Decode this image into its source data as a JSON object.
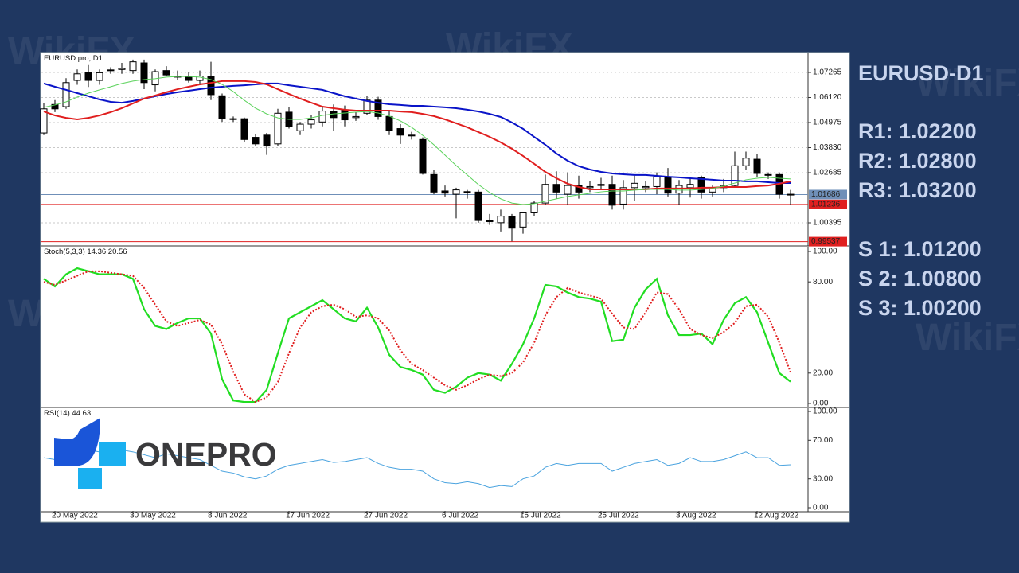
{
  "chart_data": [
    {
      "type": "candlestick",
      "title": "EURUSD.pro, D1",
      "categories": [
        null,
        "20 May 2022",
        null,
        null,
        null,
        null,
        null,
        null,
        "30 May 2022",
        null,
        null,
        null,
        null,
        null,
        null,
        "8 Jun 2022",
        null,
        null,
        null,
        null,
        null,
        null,
        "17 Jun 2022",
        null,
        null,
        null,
        null,
        null,
        null,
        "27 Jun 2022",
        null,
        null,
        null,
        null,
        null,
        null,
        "6 Jul 2022",
        null,
        null,
        null,
        null,
        null,
        null,
        "15 Jul 2022",
        null,
        null,
        null,
        null,
        null,
        null,
        "25 Jul 2022",
        null,
        null,
        null,
        null,
        null,
        null,
        "3 Aug 2022",
        null,
        null,
        null,
        null,
        null,
        null,
        "12 Aug 2022",
        null,
        null,
        null
      ],
      "open": [
        1.045,
        1.058,
        1.057,
        1.069,
        1.0725,
        1.069,
        1.0735,
        1.074,
        1.0735,
        1.077,
        1.067,
        1.0735,
        1.0705,
        1.071,
        1.069,
        1.071,
        1.062,
        1.0515,
        1.0515,
        1.043,
        1.044,
        1.04,
        1.0545,
        1.046,
        1.049,
        1.05,
        1.055,
        1.0555,
        1.052,
        1.054,
        1.06,
        1.0525,
        1.047,
        1.044,
        1.042,
        1.026,
        1.0185,
        1.017,
        1.018,
        1.018,
        1.005,
        1.004,
        1.007,
        1.002,
        1.0085,
        1.013,
        1.0215,
        1.017,
        1.021,
        1.02,
        1.0215,
        1.0215,
        1.0125,
        1.02,
        1.02,
        1.0205,
        1.025,
        1.0175,
        1.02,
        1.0245,
        1.018,
        1.02,
        1.021,
        1.03,
        1.033,
        1.026,
        1.026,
        1.017
      ],
      "high": [
        1.0585,
        1.06,
        1.07,
        1.074,
        1.076,
        1.074,
        1.075,
        1.077,
        1.0785,
        1.0785,
        1.074,
        1.0755,
        1.0735,
        1.073,
        1.0735,
        1.0775,
        1.063,
        1.0525,
        1.052,
        1.0445,
        1.045,
        1.056,
        1.057,
        1.05,
        1.053,
        1.057,
        1.058,
        1.0575,
        1.0545,
        1.062,
        1.0615,
        1.055,
        1.049,
        1.0455,
        1.043,
        1.028,
        1.021,
        1.02,
        1.019,
        1.019,
        1.008,
        1.01,
        1.008,
        1.009,
        1.014,
        1.026,
        1.0275,
        1.027,
        1.0255,
        1.023,
        1.0245,
        1.0255,
        1.0235,
        1.0255,
        1.023,
        1.027,
        1.029,
        1.0235,
        1.024,
        1.0255,
        1.021,
        1.024,
        1.0365,
        1.0365,
        1.0355,
        1.027,
        1.027,
        1.019
      ],
      "low": [
        1.044,
        1.0545,
        1.056,
        1.067,
        1.066,
        1.067,
        1.072,
        1.072,
        1.072,
        1.065,
        1.064,
        1.071,
        1.069,
        1.068,
        1.067,
        1.06,
        1.05,
        1.05,
        1.041,
        1.039,
        1.035,
        1.039,
        1.047,
        1.044,
        1.047,
        1.048,
        1.046,
        1.048,
        1.0505,
        1.053,
        1.051,
        1.044,
        1.04,
        1.042,
        1.026,
        1.017,
        1.016,
        1.006,
        1.015,
        1.004,
        1.003,
        1.0,
        0.9955,
        0.999,
        1.007,
        1.012,
        1.015,
        1.012,
        1.015,
        1.018,
        1.019,
        1.01,
        1.01,
        1.014,
        1.018,
        1.017,
        1.016,
        1.012,
        1.0155,
        1.015,
        1.016,
        1.018,
        1.02,
        1.028,
        1.025,
        1.024,
        1.015,
        1.012
      ],
      "close": [
        1.056,
        1.056,
        1.068,
        1.072,
        1.069,
        1.0725,
        1.0738,
        1.0745,
        1.0775,
        1.068,
        1.073,
        1.0715,
        1.071,
        1.069,
        1.071,
        1.0625,
        1.0515,
        1.0515,
        1.042,
        1.04,
        1.039,
        1.054,
        1.048,
        1.049,
        1.051,
        1.055,
        1.052,
        1.051,
        1.0525,
        1.06,
        1.0525,
        1.046,
        1.044,
        1.044,
        1.0265,
        1.018,
        1.0175,
        1.019,
        1.0182,
        1.005,
        1.0045,
        1.007,
        1.0015,
        1.0085,
        1.013,
        1.0215,
        1.018,
        1.021,
        1.018,
        1.0205,
        1.021,
        1.012,
        1.02,
        1.022,
        1.0205,
        1.025,
        1.0175,
        1.021,
        1.0215,
        1.018,
        1.02,
        1.021,
        1.03,
        1.0335,
        1.0265,
        1.0258,
        1.017,
        1.0168
      ],
      "series": [
        {
          "color": "#0a14c8",
          "values": [
            1.0676,
            1.0661,
            1.0647,
            1.0632,
            1.0618,
            1.0603,
            1.0592,
            1.0588,
            1.0596,
            1.0607,
            1.0618,
            1.0628,
            1.0636,
            1.0643,
            1.065,
            1.0657,
            1.0661,
            1.0665,
            1.0668,
            1.0672,
            1.0676,
            1.0676,
            1.0668,
            1.0661,
            1.0654,
            1.0647,
            1.0632,
            1.0618,
            1.0607,
            1.0596,
            1.0588,
            1.0581,
            1.0578,
            1.0574,
            1.0574,
            1.057,
            1.0567,
            1.0563,
            1.0556,
            1.0548,
            1.0537,
            1.0523,
            1.0498,
            1.0469,
            1.0432,
            1.0396,
            1.0356,
            1.0323,
            1.0298,
            1.0283,
            1.0272,
            1.0265,
            1.0261,
            1.0258,
            1.0258,
            1.0254,
            1.025,
            1.0247,
            1.0243,
            1.024,
            1.0236,
            1.0232,
            1.0232,
            1.0229,
            1.0229,
            1.0225,
            1.0221,
            1.0221
          ]
        },
        {
          "color": "#e01e1e",
          "values": [
            1.0548,
            1.053,
            1.0519,
            1.0512,
            1.0519,
            1.053,
            1.0545,
            1.0563,
            1.0585,
            1.0607,
            1.0621,
            1.0636,
            1.065,
            1.0661,
            1.0672,
            1.0679,
            1.0687,
            1.0687,
            1.0687,
            1.0683,
            1.0672,
            1.065,
            1.0628,
            1.0607,
            1.0588,
            1.057,
            1.0563,
            1.0556,
            1.0552,
            1.0552,
            1.0552,
            1.0552,
            1.0548,
            1.0545,
            1.0537,
            1.0527,
            1.0512,
            1.0494,
            1.0476,
            1.0454,
            1.0432,
            1.0407,
            1.0378,
            1.0345,
            1.0309,
            1.0272,
            1.0243,
            1.0218,
            1.0203,
            1.0192,
            1.0192,
            1.0192,
            1.0192,
            1.0192,
            1.0192,
            1.0196,
            1.0196,
            1.0196,
            1.0196,
            1.02,
            1.02,
            1.0203,
            1.0203,
            1.0203,
            1.0207,
            1.021,
            1.0218,
            1.0229
          ]
        },
        {
          "color": "#5ad25a",
          "values": [
            1.0567,
            1.0578,
            1.0592,
            1.0614,
            1.0632,
            1.0647,
            1.0661,
            1.0676,
            1.0687,
            1.0694,
            1.0698,
            1.0705,
            1.0708,
            1.0708,
            1.0705,
            1.0694,
            1.0672,
            1.0639,
            1.0599,
            1.0563,
            1.0537,
            1.0519,
            1.0512,
            1.0512,
            1.0519,
            1.053,
            1.0537,
            1.0541,
            1.0545,
            1.0548,
            1.0541,
            1.0527,
            1.0505,
            1.0476,
            1.0439,
            1.0396,
            1.0349,
            1.0301,
            1.0258,
            1.0214,
            1.0178,
            1.0149,
            1.013,
            1.0123,
            1.0127,
            1.0138,
            1.0149,
            1.016,
            1.0167,
            1.0174,
            1.0181,
            1.0185,
            1.0185,
            1.0189,
            1.0192,
            1.0192,
            1.0192,
            1.0189,
            1.0189,
            1.0192,
            1.0196,
            1.0207,
            1.0221,
            1.0236,
            1.0243,
            1.0247,
            1.0243,
            1.024
          ]
        }
      ],
      "hlines": [
        {
          "value": 1.01686,
          "color": "#6f8fb8"
        },
        {
          "value": 1.01236,
          "color": "#e02020"
        },
        {
          "value": 0.99537,
          "color": "#e02020"
        }
      ],
      "ylim": [
        0.99413,
        1.08101
      ],
      "yticks": [
        1.07265,
        {
          "value": 1.0612,
          "label": "1.06120"
        },
        1.04975,
        {
          "value": 1.0383,
          "label": "1.03830"
        },
        1.02685,
        1.00395
      ],
      "grid": true
    },
    {
      "type": "line",
      "title": "Stoch(5,3,3) 14.36 20.56",
      "series": [
        {
          "color": "#22dd22",
          "dash": false,
          "values": [
            82,
            77,
            85,
            89,
            87,
            85,
            85,
            85,
            82,
            62,
            51,
            49,
            53,
            56,
            56,
            46,
            16,
            2,
            1,
            1,
            9,
            33,
            56,
            60,
            64,
            68,
            62,
            56,
            54,
            63,
            50,
            32,
            24,
            22,
            19,
            9,
            7,
            11,
            17,
            20,
            19,
            15,
            26,
            39,
            56,
            78,
            77,
            73,
            70,
            69,
            67,
            41,
            42,
            63,
            75,
            82,
            58,
            45,
            45,
            46,
            39,
            55,
            66,
            70,
            60,
            40,
            20,
            14.36
          ]
        },
        {
          "color": "#e01e1e",
          "dash": true,
          "values": [
            80,
            78,
            81,
            84,
            87,
            87,
            86,
            85,
            84,
            76,
            65,
            54,
            51,
            53,
            55,
            52,
            39,
            21,
            6,
            1,
            4,
            14,
            33,
            50,
            60,
            64,
            65,
            62,
            57,
            58,
            56,
            48,
            35,
            26,
            22,
            17,
            12,
            9,
            12,
            16,
            19,
            18,
            20,
            27,
            40,
            58,
            70,
            76,
            73,
            71,
            69,
            59,
            50,
            49,
            60,
            73,
            72,
            62,
            49,
            45,
            43,
            47,
            53,
            64,
            65,
            57,
            40,
            20.56
          ]
        }
      ],
      "ylim": [
        0,
        100
      ],
      "yticks": [
        {
          "value": 100,
          "label": "100.00"
        },
        {
          "value": 80,
          "label": "80.00"
        },
        {
          "value": 20,
          "label": "20.00"
        },
        {
          "value": 0,
          "label": "0.00"
        }
      ]
    },
    {
      "type": "line",
      "title": "RSI(14) 44.63",
      "series": [
        {
          "color": "#4aa3df",
          "dash": false,
          "values": [
            52,
            50,
            55,
            58,
            60,
            58,
            56,
            60,
            58,
            55,
            52,
            56,
            54,
            52,
            50,
            44,
            38,
            36,
            32,
            30,
            33,
            40,
            44,
            46,
            48,
            50,
            47,
            48,
            50,
            52,
            46,
            42,
            40,
            40,
            38,
            30,
            26,
            25,
            27,
            25,
            21,
            23,
            22,
            30,
            33,
            42,
            46,
            44,
            46,
            46,
            46,
            38,
            42,
            46,
            48,
            50,
            44,
            46,
            52,
            48,
            48,
            50,
            54,
            58,
            52,
            52,
            44,
            44.63
          ]
        }
      ],
      "ylim": [
        0,
        100
      ],
      "yticks": [
        {
          "value": 100,
          "label": "100.00"
        },
        {
          "value": 70,
          "label": "70.00"
        },
        {
          "value": 30,
          "label": "30.00"
        },
        {
          "value": 0,
          "label": "0.00"
        }
      ]
    }
  ],
  "side_panel": {
    "title": "EURUSD-D1",
    "resistance": [
      "R1: 1.02200",
      "R2: 1.02800",
      "R3: 1.03200"
    ],
    "support": [
      "S 1: 1.01200",
      "S 2: 1.00800",
      "S 3: 1.00200"
    ]
  },
  "logo": "ONEPRO",
  "watermark": "WikiFX"
}
